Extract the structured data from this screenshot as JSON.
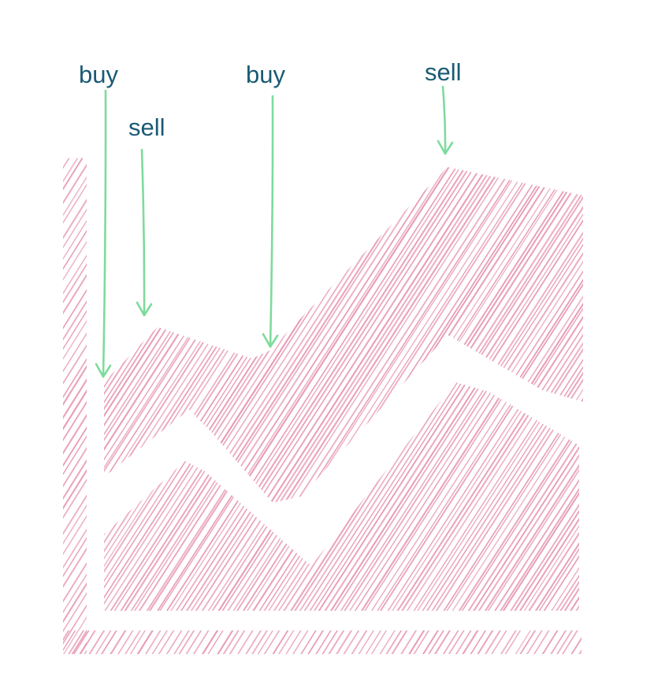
{
  "annotations": [
    {
      "text": "buy"
    },
    {
      "text": "sell"
    },
    {
      "text": "buy"
    },
    {
      "text": "sell"
    }
  ],
  "colors": {
    "hatch": "#e79ab5",
    "arrow": "#7edb9c",
    "label": "#1a5a75"
  }
}
